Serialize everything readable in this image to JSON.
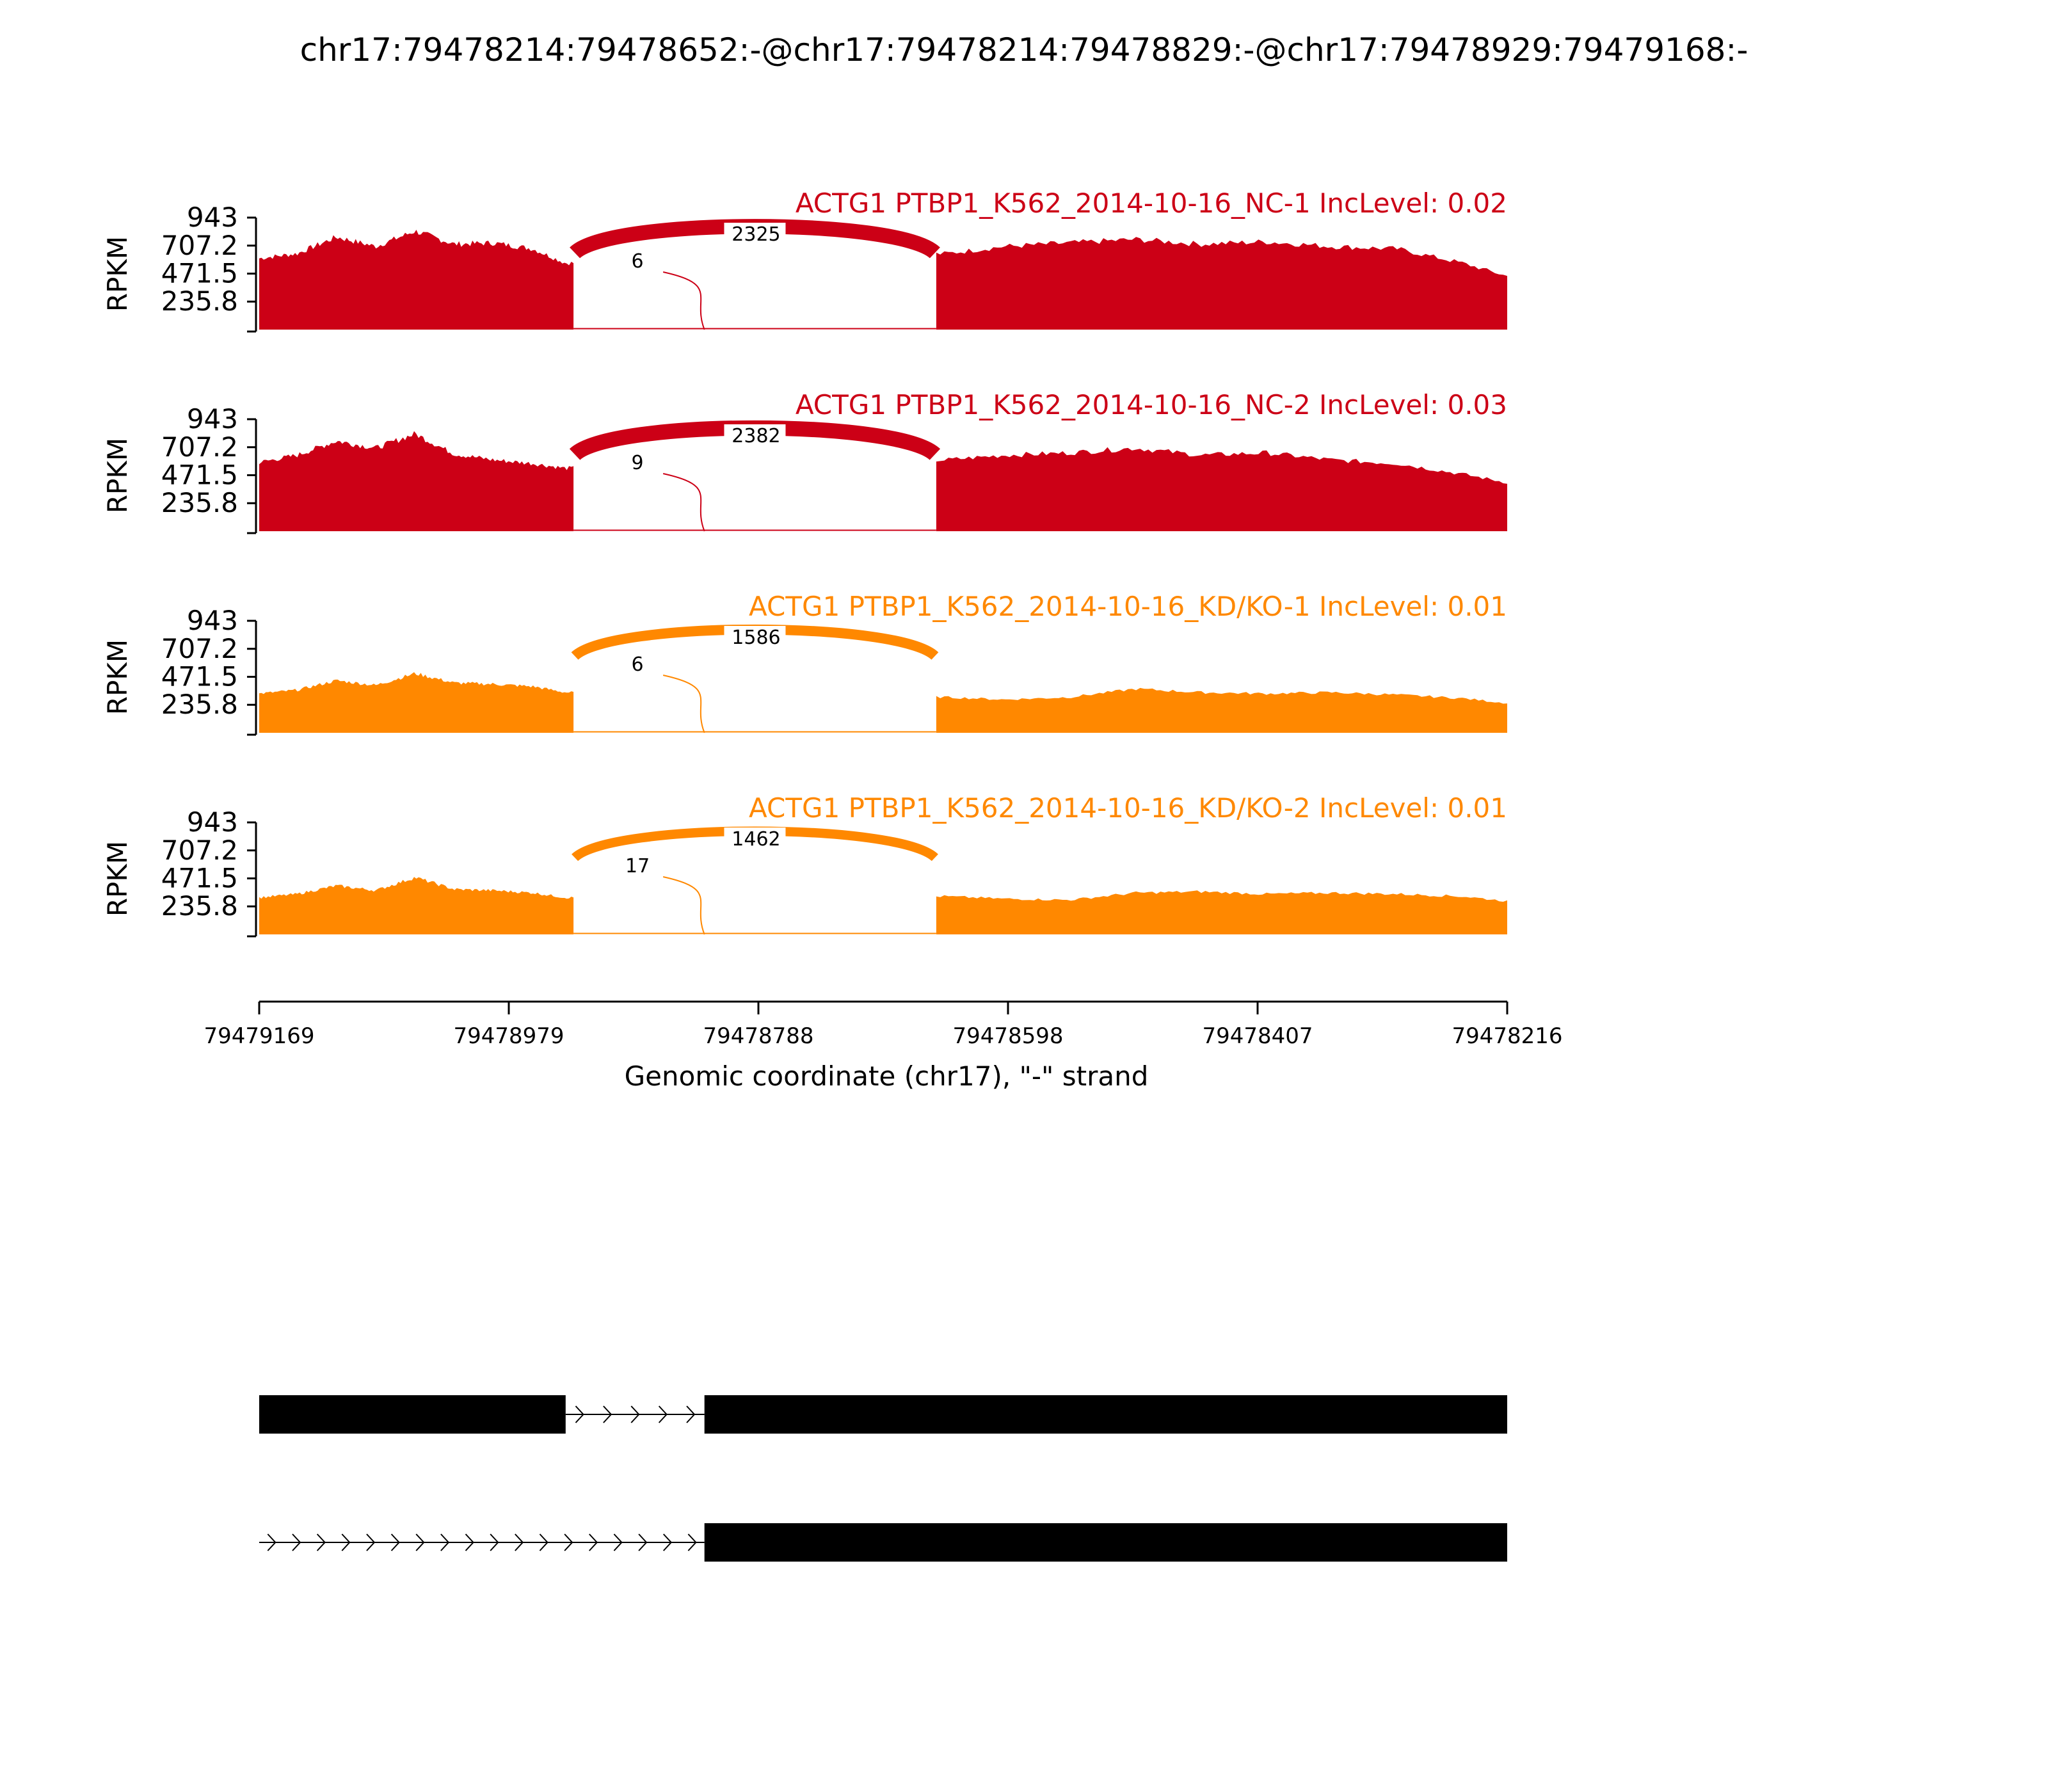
{
  "chart_data": {
    "type": "area",
    "title": "chr17:79478214:79478652:-@chr17:79478214:79478829:-@chr17:79478929:79479168:-",
    "ylabel": "RPKM",
    "xlabel": "Genomic coordinate (chr17), \"-\" strand",
    "x_range": [
      79479169,
      79478216
    ],
    "x_ticks": [
      "79479169",
      "79478979",
      "79478788",
      "79478598",
      "79478407",
      "79478216"
    ],
    "y_range": [
      0,
      943
    ],
    "y_ticks": [
      "943",
      "707.2",
      "471.5",
      "235.8"
    ],
    "exon_regions": [
      [
        79479169,
        79478929
      ],
      [
        79478652,
        79478216
      ]
    ],
    "junction_ends": {
      "skip_start": 79478929,
      "skip_end": 79478652,
      "inc_end": 79478829
    },
    "colors": {
      "NC": "#cc0016",
      "KD": "#ff8800"
    },
    "tracks": [
      {
        "id": "nc1",
        "label": "ACTG1 PTBP1_K562_2014-10-16_NC-1 IncLevel: 0.02",
        "color": "#cc0016",
        "skip_junction": "2325",
        "inclusion_junction": "6",
        "coverage": {
          "x": [
            79479169,
            79479140,
            79479110,
            79479080,
            79479050,
            79479020,
            79478990,
            79478960,
            79478935,
            79478645,
            79478600,
            79478550,
            79478500,
            79478450,
            79478400,
            79478350,
            79478300,
            79478250,
            79478216
          ],
          "y": [
            600,
            640,
            780,
            700,
            830,
            720,
            730,
            680,
            560,
            640,
            700,
            730,
            760,
            720,
            740,
            700,
            680,
            560,
            450
          ]
        }
      },
      {
        "id": "nc2",
        "label": "ACTG1 PTBP1_K562_2014-10-16_NC-2 IncLevel: 0.03",
        "color": "#cc0016",
        "skip_junction": "2382",
        "inclusion_junction": "9",
        "coverage": {
          "x": [
            79479169,
            79479140,
            79479110,
            79479080,
            79479050,
            79479020,
            79478990,
            79478960,
            79478935,
            79478645,
            79478600,
            79478550,
            79478500,
            79478450,
            79478400,
            79478350,
            79478300,
            79478250,
            79478216
          ],
          "y": [
            580,
            640,
            760,
            700,
            820,
            650,
            600,
            570,
            530,
            600,
            640,
            660,
            700,
            640,
            660,
            600,
            570,
            480,
            410
          ]
        }
      },
      {
        "id": "kd1",
        "label": "ACTG1 PTBP1_K562_2014-10-16_KD/KO-1 IncLevel: 0.01",
        "color": "#ff8800",
        "skip_junction": "1586",
        "inclusion_junction": "6",
        "coverage": {
          "x": [
            79479169,
            79479140,
            79479110,
            79479080,
            79479050,
            79479020,
            79478990,
            79478960,
            79478935,
            79478645,
            79478600,
            79478550,
            79478500,
            79478450,
            79478400,
            79478350,
            79478300,
            79478250,
            79478216
          ],
          "y": [
            330,
            360,
            440,
            400,
            500,
            420,
            410,
            390,
            340,
            300,
            280,
            300,
            370,
            340,
            330,
            340,
            320,
            290,
            250
          ]
        }
      },
      {
        "id": "kd2",
        "label": "ACTG1 PTBP1_K562_2014-10-16_KD/KO-2 IncLevel: 0.01",
        "color": "#ff8800",
        "skip_junction": "1462",
        "inclusion_junction": "17",
        "coverage": {
          "x": [
            79479169,
            79479140,
            79479110,
            79479080,
            79479050,
            79479020,
            79478990,
            79478960,
            79478935,
            79478645,
            79478600,
            79478550,
            79478500,
            79478450,
            79478400,
            79478350,
            79478300,
            79478250,
            79478216
          ],
          "y": [
            310,
            340,
            410,
            370,
            480,
            380,
            370,
            350,
            310,
            320,
            300,
            290,
            350,
            360,
            340,
            350,
            340,
            320,
            280
          ]
        }
      }
    ],
    "isoforms": [
      {
        "id": "isoform-1",
        "exons": [
          [
            79479169,
            79478935
          ],
          [
            79478829,
            79478216
          ]
        ],
        "intron": [
          79478935,
          79478829
        ]
      },
      {
        "id": "isoform-2",
        "exons": [
          [
            79478829,
            79478216
          ]
        ],
        "intron": [
          79479169,
          79478829
        ]
      }
    ]
  }
}
